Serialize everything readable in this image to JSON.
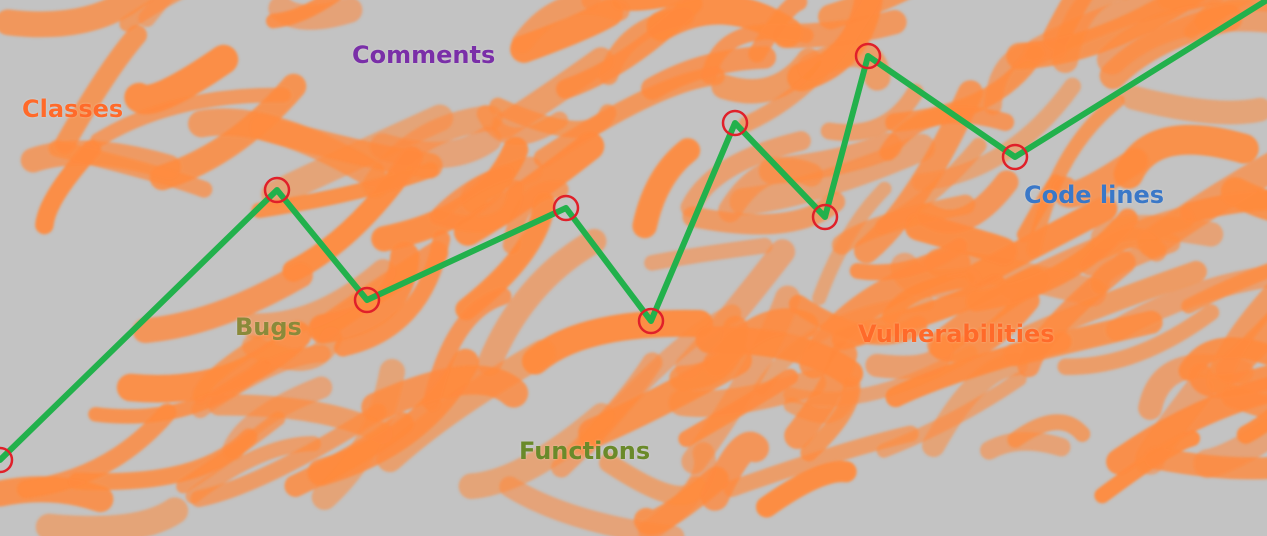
{
  "labels": {
    "classes": "Classes",
    "comments": "Comments",
    "bugs": "Bugs",
    "functions": "Functions",
    "vulnerabilities": "Vulnerabilities",
    "code_lines": "Code lines"
  },
  "colors": {
    "background": "#c3c3c3",
    "scribble": "#ff8a3d",
    "line": "#22b14c",
    "marker": "#e0202a",
    "classes": "#ff6a2a",
    "comments": "#7a2fa8",
    "bugs": "#8a8a3a",
    "functions": "#6a8a2a",
    "vulnerabilities": "#ff6a2a",
    "code_lines": "#3a78c8"
  }
}
